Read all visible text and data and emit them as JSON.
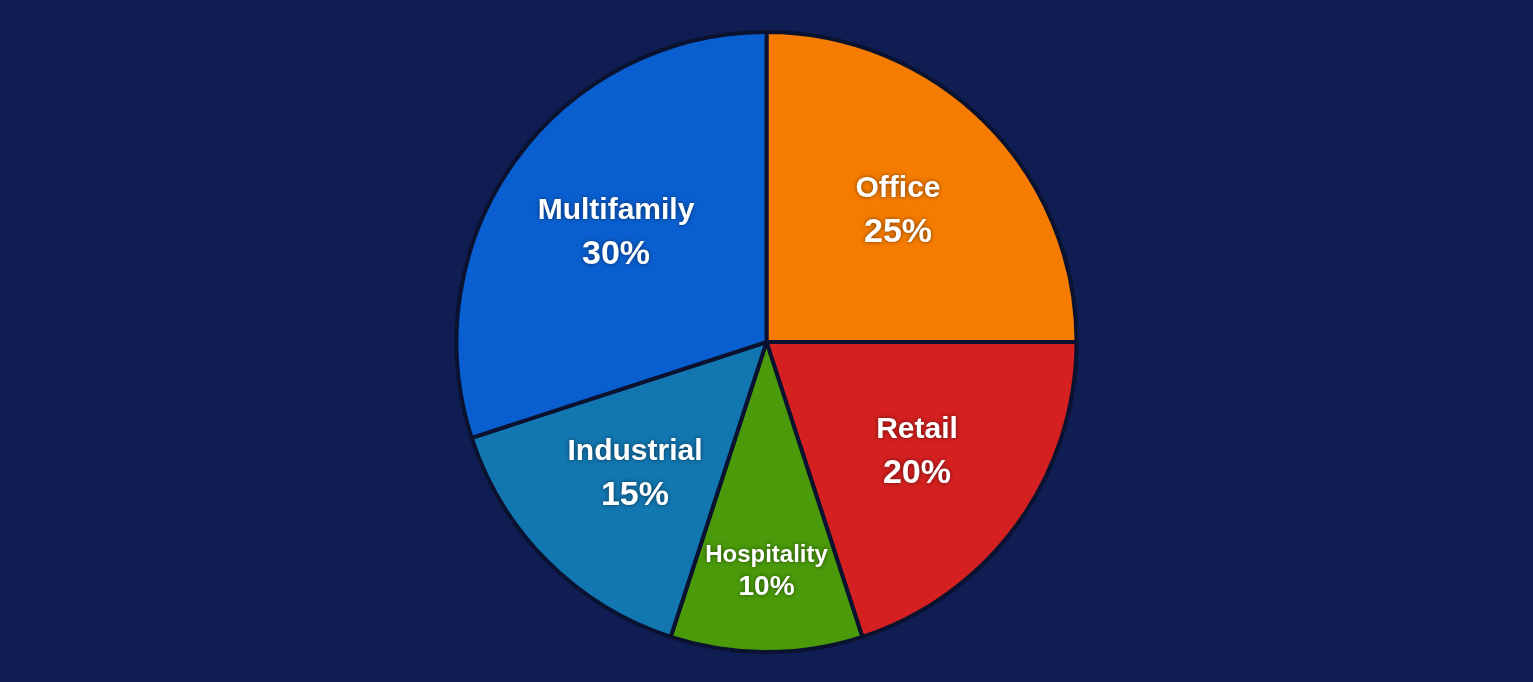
{
  "chart_data": {
    "type": "pie",
    "categories": [
      "Office",
      "Retail",
      "Hospitality",
      "Industrial",
      "Multifamily"
    ],
    "values": [
      25,
      20,
      10,
      15,
      30
    ],
    "colors": [
      "#f57c00",
      "#d42020",
      "#4a9a0a",
      "#1276b0",
      "#0a5fd0"
    ],
    "data_labels": true,
    "value_labels": [
      "25%",
      "20%",
      "10%",
      "15%",
      "30%"
    ]
  }
}
